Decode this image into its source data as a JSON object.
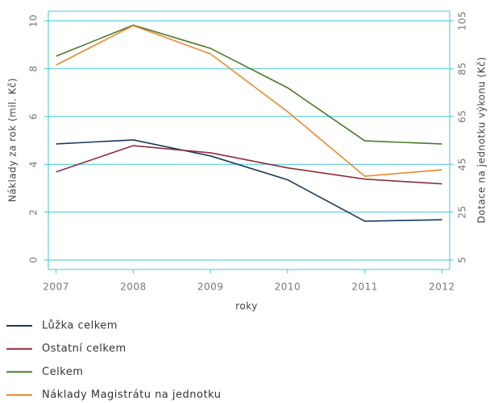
{
  "chart_data": {
    "type": "line",
    "x": [
      2007,
      2008,
      2009,
      2010,
      2011,
      2012
    ],
    "xlim": [
      2006.9,
      2012.1
    ],
    "xticks": [
      2007,
      2008,
      2009,
      2010,
      2011,
      2012
    ],
    "xlabel": "roky",
    "ylabel": "Náklady za rok (mil. Kč)",
    "y2label": "Dotace na jednotku výkonu (Kč)",
    "ylim": [
      -0.4,
      10.4
    ],
    "yticks": [
      0,
      2,
      4,
      6,
      8,
      10
    ],
    "y2lim": [
      1,
      109
    ],
    "y2ticks": [
      5,
      25,
      45,
      65,
      85,
      105
    ],
    "grid": true,
    "grid_color": "#3cc8d8",
    "legend": "bottom",
    "series": [
      {
        "name": "Lůžka celkem",
        "color": "#1a3a5c",
        "values": [
          4.85,
          5.02,
          4.35,
          3.35,
          1.62,
          1.68
        ]
      },
      {
        "name": "Ostatní celkem",
        "color": "#8b2e3a",
        "values": [
          3.68,
          4.78,
          4.48,
          3.85,
          3.38,
          3.18
        ]
      },
      {
        "name": "Celkem",
        "color": "#4a7a2a",
        "values": [
          8.52,
          9.82,
          8.85,
          7.2,
          4.98,
          4.85
        ]
      },
      {
        "name": "Náklady Magistrátu na jednotku",
        "color": "#e8892a",
        "axis": "y2",
        "values": [
          86.5,
          103,
          91.2,
          67,
          40,
          42.7
        ]
      }
    ]
  }
}
